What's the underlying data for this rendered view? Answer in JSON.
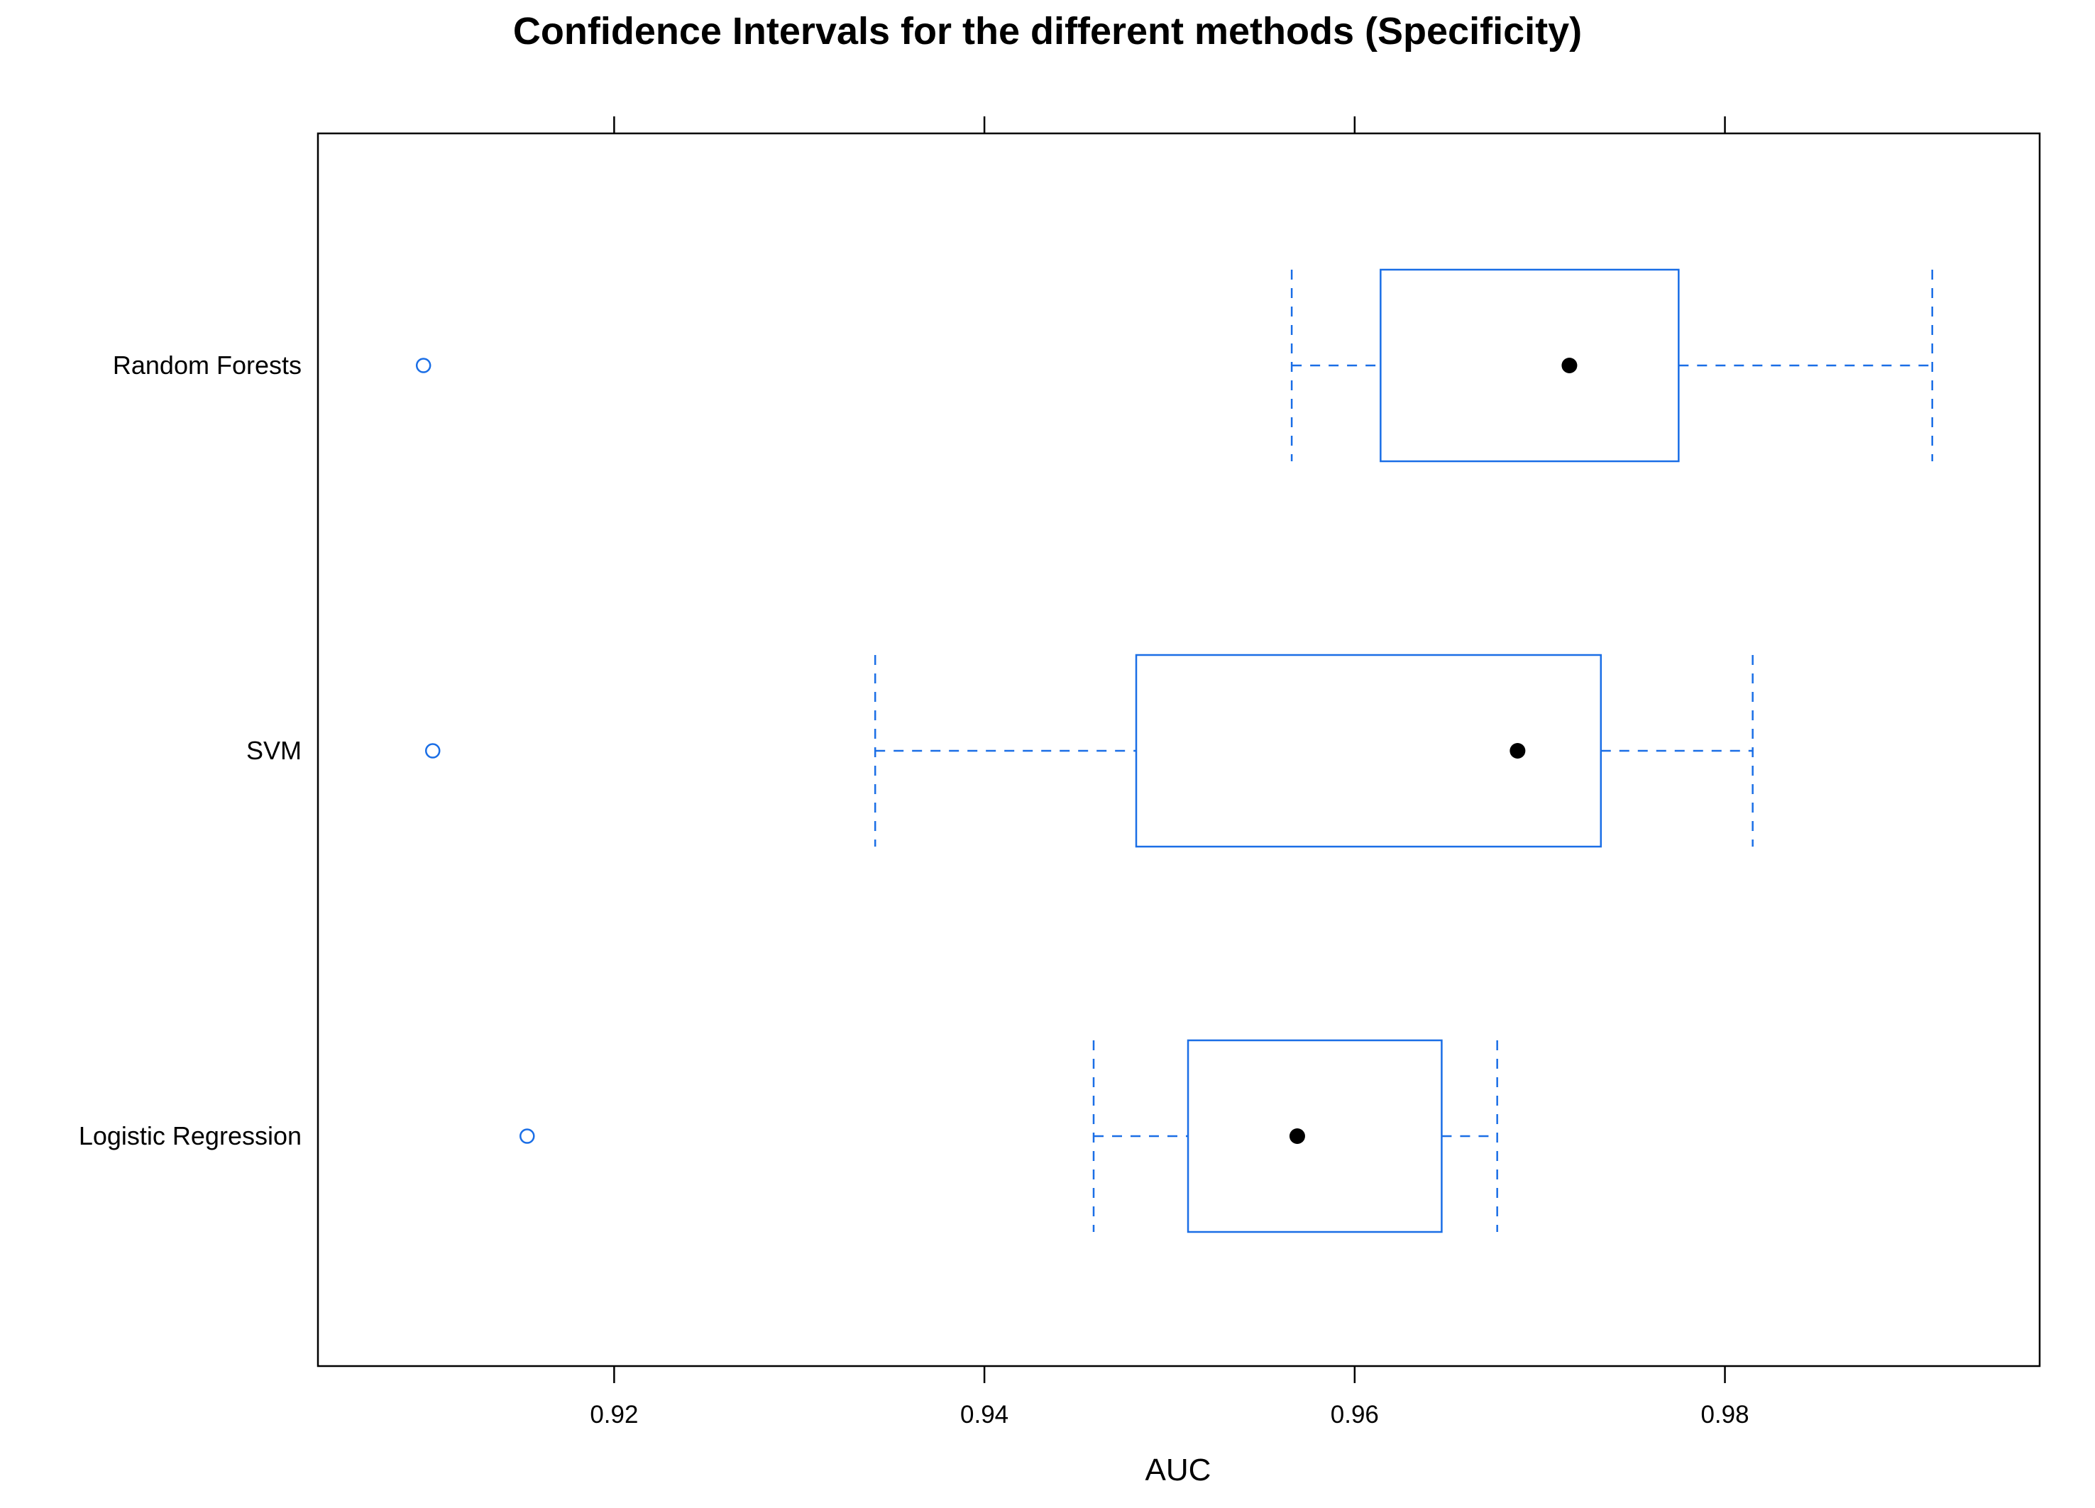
{
  "chart_data": {
    "type": "boxplot",
    "title": "Confidence Intervals for the different methods (Specificity)",
    "xlabel": "AUC",
    "ylabel": "",
    "xlim": [
      0.904,
      0.997
    ],
    "x_ticks": [
      0.92,
      0.94,
      0.96,
      0.98
    ],
    "x_tick_labels": [
      "0.92",
      "0.94",
      "0.96",
      "0.98"
    ],
    "orientation": "horizontal",
    "grid": false,
    "categories": [
      "Random Forests",
      "SVM",
      "Logistic Regression"
    ],
    "boxes": [
      {
        "category": "Random Forests",
        "whisker_low": 0.9566,
        "q1": 0.9614,
        "median": 0.9716,
        "q3": 0.9775,
        "whisker_high": 0.9912,
        "outliers": [
          0.9097
        ]
      },
      {
        "category": "SVM",
        "whisker_low": 0.9341,
        "q1": 0.9482,
        "median": 0.9688,
        "q3": 0.9733,
        "whisker_high": 0.9815,
        "outliers": [
          0.9102
        ]
      },
      {
        "category": "Logistic Regression",
        "whisker_low": 0.9459,
        "q1": 0.951,
        "median": 0.9569,
        "q3": 0.9647,
        "whisker_high": 0.9677,
        "outliers": [
          0.9153
        ]
      }
    ],
    "colors": {
      "box": "#1a6ee6",
      "median_dot": "#000000",
      "frame": "#000000"
    }
  }
}
